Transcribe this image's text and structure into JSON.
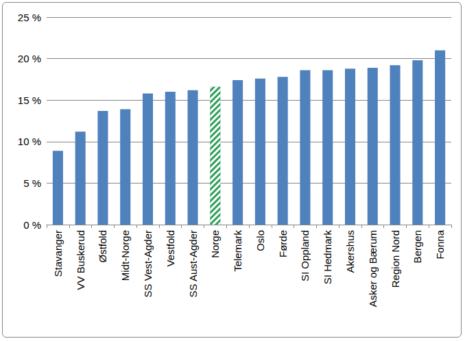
{
  "chart_data": {
    "type": "bar",
    "categories": [
      "Stavanger",
      "VV Buskerud",
      "Østfold",
      "Midt-Norge",
      "SS Vest-Agder",
      "Vestfold",
      "SS Aust-Agder",
      "Norge",
      "Telemark",
      "Oslo",
      "Førde",
      "SI Oppland",
      "SI Hedmark",
      "Akershus",
      "Asker og Bærum",
      "Region Nord",
      "Bergen",
      "Fonna"
    ],
    "values": [
      8.9,
      11.2,
      13.7,
      13.9,
      15.8,
      16.0,
      16.2,
      16.6,
      17.4,
      17.6,
      17.8,
      18.6,
      18.6,
      18.8,
      18.9,
      19.2,
      19.8,
      21.0
    ],
    "colors": [
      "#4f81bd",
      "#4f81bd",
      "#4f81bd",
      "#4f81bd",
      "#4f81bd",
      "#4f81bd",
      "#4f81bd",
      "#2e9e5b",
      "#4f81bd",
      "#4f81bd",
      "#4f81bd",
      "#4f81bd",
      "#4f81bd",
      "#4f81bd",
      "#4f81bd",
      "#4f81bd",
      "#4f81bd",
      "#4f81bd"
    ],
    "ylim": [
      0,
      25
    ],
    "yticks": [
      {
        "value": 0,
        "label": "0 %"
      },
      {
        "value": 5,
        "label": "5 %"
      },
      {
        "value": 10,
        "label": "10 %"
      },
      {
        "value": 15,
        "label": "15 %"
      },
      {
        "value": 20,
        "label": "20 %"
      },
      {
        "value": 25,
        "label": "25 %"
      }
    ],
    "grid": true
  }
}
